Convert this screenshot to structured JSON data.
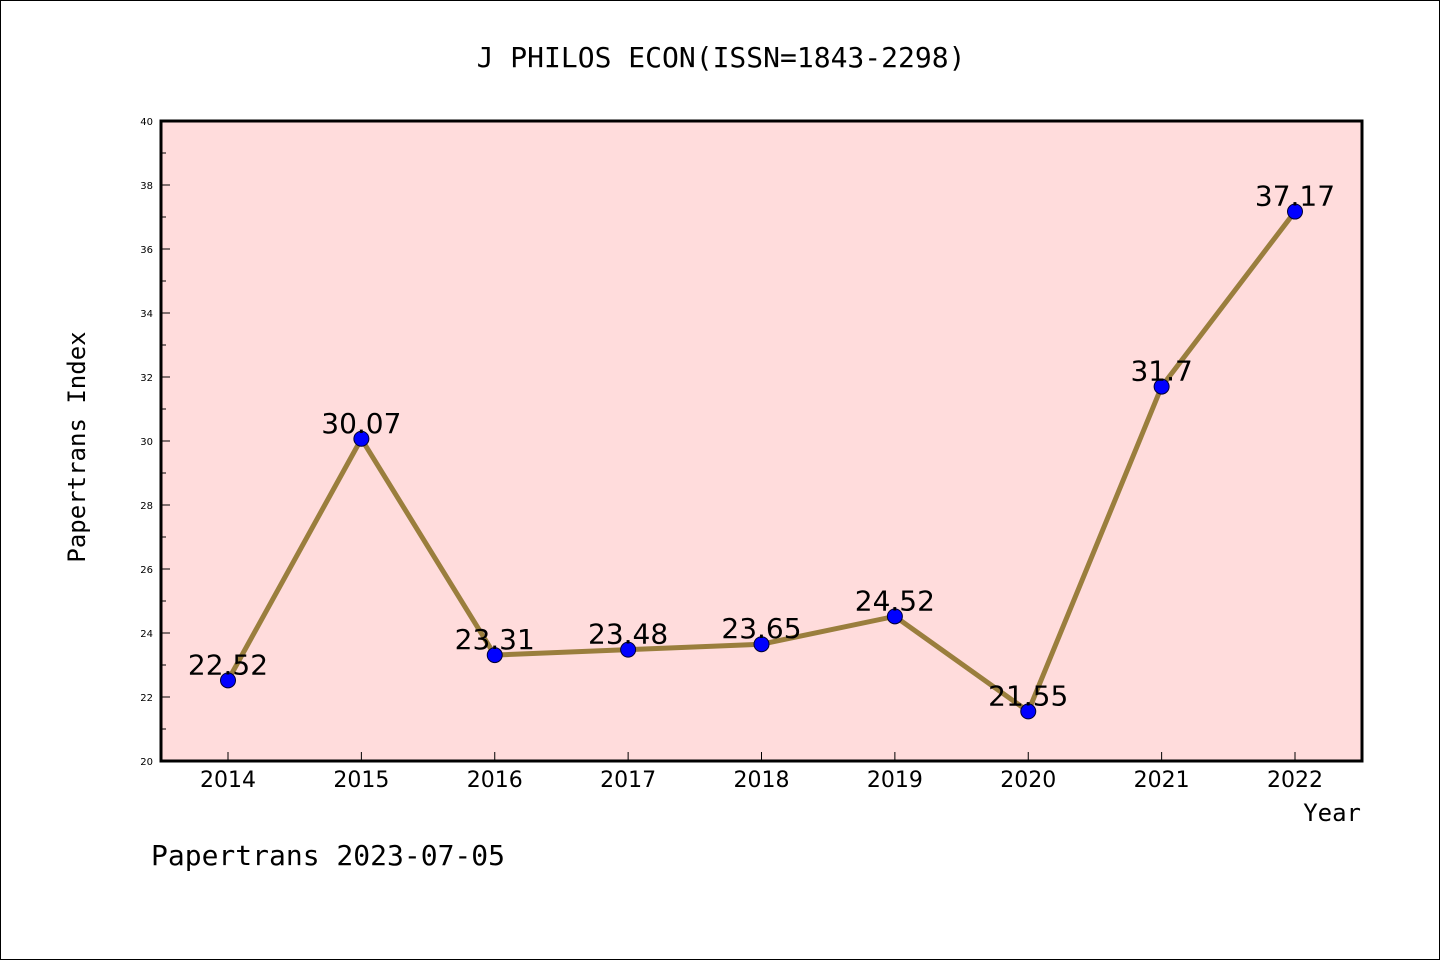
{
  "chart_data": {
    "type": "line",
    "title": "J PHILOS ECON(ISSN=1843-2298)",
    "xlabel": "Year",
    "ylabel": "Papertrans Index",
    "footer": "Papertrans 2023-07-05",
    "categories": [
      "2014",
      "2015",
      "2016",
      "2017",
      "2018",
      "2019",
      "2020",
      "2021",
      "2022"
    ],
    "values": [
      22.52,
      30.07,
      23.31,
      23.48,
      23.65,
      24.52,
      21.55,
      31.7,
      37.17
    ],
    "data_labels": [
      "22.52",
      "30.07",
      "23.31",
      "23.48",
      "23.65",
      "24.52",
      "21.55",
      "31.7",
      "37.17"
    ],
    "ylim": [
      20,
      40
    ],
    "yticks": [
      "20",
      "22",
      "24",
      "26",
      "28",
      "30",
      "32",
      "34",
      "36",
      "38",
      "40"
    ],
    "grid": false,
    "colors": {
      "plot_background": "#ffdcdc",
      "line": "#9a7e3d",
      "marker": "#0000ff",
      "text": "#000000"
    }
  }
}
